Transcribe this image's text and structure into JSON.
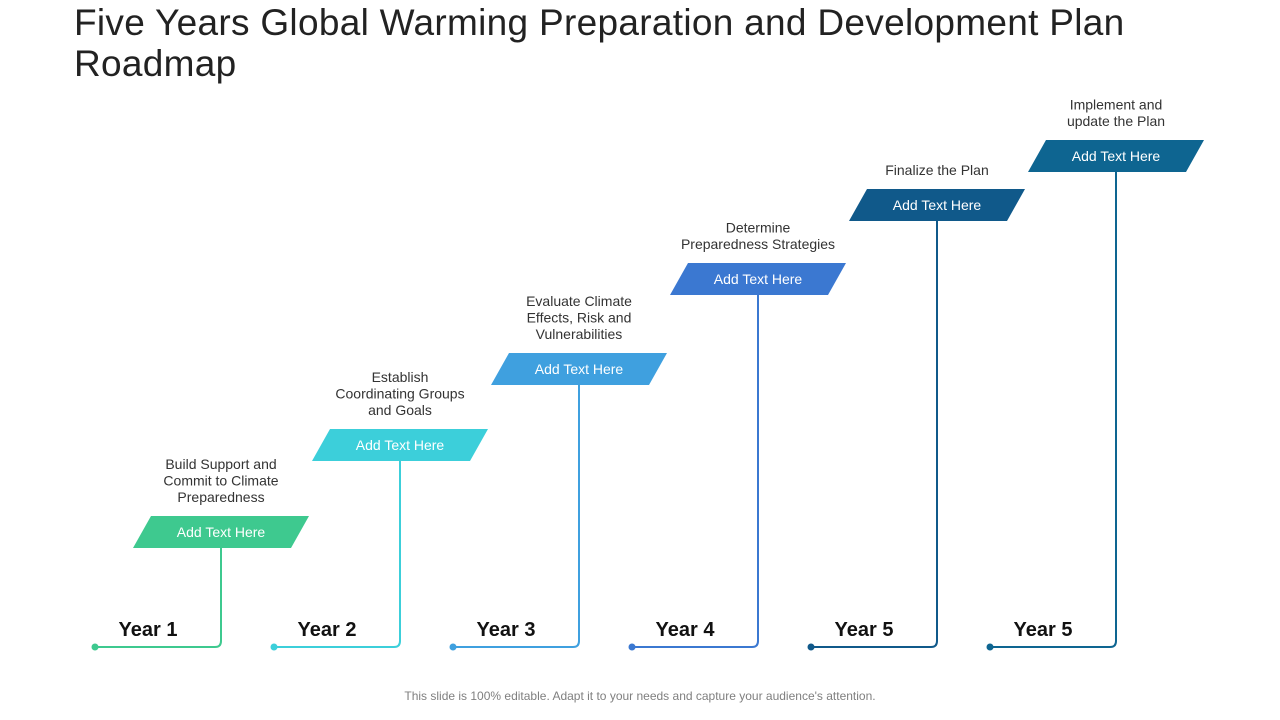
{
  "title": "Five Years Global Warming Preparation and Development Plan Roadmap",
  "footer": "This slide is 100% editable. Adapt it to your needs and capture your audience's attention.",
  "steps": [
    {
      "year": "Year 1",
      "box_label": "Add Text Here",
      "description": [
        "Build Support and",
        "Commit to Climate",
        "Preparedness"
      ],
      "color": "#3ec98f"
    },
    {
      "year": "Year 2",
      "box_label": "Add Text Here",
      "description": [
        "Establish",
        "Coordinating Groups",
        "and Goals"
      ],
      "color": "#3ccfda"
    },
    {
      "year": "Year 3",
      "box_label": "Add Text Here",
      "description": [
        "Evaluate Climate",
        "Effects, Risk and",
        "Vulnerabilities"
      ],
      "color": "#3fa0df"
    },
    {
      "year": "Year 4",
      "box_label": "Add Text Here",
      "description": [
        "Determine",
        "Preparedness Strategies"
      ],
      "color": "#3b78d1"
    },
    {
      "year": "Year 5",
      "box_label": "Add Text Here",
      "description": [
        "Finalize the Plan"
      ],
      "color": "#10598a"
    },
    {
      "year": "Year 5",
      "box_label": "Add Text Here",
      "description": [
        "Implement and",
        "update the Plan"
      ],
      "color": "#0e6591"
    }
  ]
}
